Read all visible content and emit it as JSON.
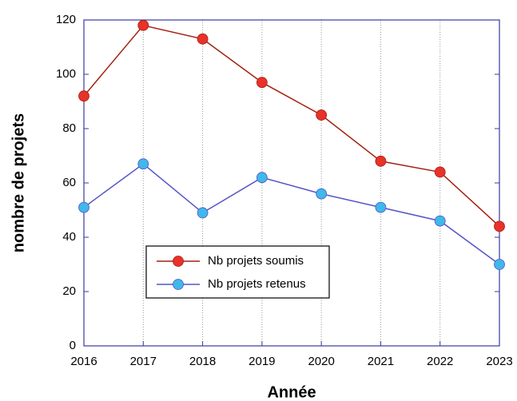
{
  "chart_data": {
    "type": "line",
    "xlabel": "Année",
    "ylabel": "nombre de projets",
    "x": [
      2016,
      2017,
      2018,
      2019,
      2020,
      2021,
      2022,
      2023
    ],
    "series": [
      {
        "name": "Nb projets soumis",
        "color": "#a3200f",
        "marker_color": "#e8322a",
        "values": [
          92,
          118,
          113,
          97,
          85,
          68,
          64,
          44
        ]
      },
      {
        "name": "Nb projets retenus",
        "color": "#5555c8",
        "marker_color": "#3fb8ea",
        "values": [
          51,
          67,
          49,
          62,
          56,
          51,
          46,
          30
        ]
      }
    ],
    "xlim": [
      2016,
      2023
    ],
    "xticks": [
      2016,
      2017,
      2018,
      2019,
      2020,
      2021,
      2022,
      2023
    ],
    "ylim": [
      0,
      120
    ],
    "yticks": [
      0,
      20,
      40,
      60,
      80,
      100,
      120
    ],
    "grid": true,
    "legend": "lower left"
  }
}
